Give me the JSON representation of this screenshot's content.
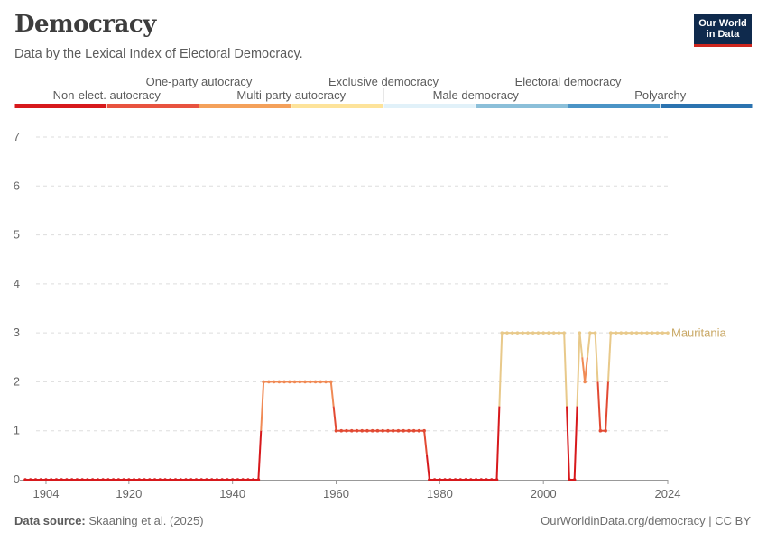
{
  "header": {
    "title": "Democracy",
    "subtitle": "Data by the Lexical Index of Electoral Democracy."
  },
  "logo": {
    "line1": "Our World",
    "line2": "in Data"
  },
  "footer": {
    "source_label": "Data source:",
    "source_text": "Skaaning et al. (2025)",
    "url_text": "OurWorldinData.org/democracy | CC BY"
  },
  "legend": {
    "categories": [
      {
        "label": "Non-elect. autocracy",
        "color": "#d7191c"
      },
      {
        "label": "One-party autocracy",
        "color": "#e8533f"
      },
      {
        "label": "Multi-party autocracy",
        "color": "#f4a15b"
      },
      {
        "label": "Exclusive democracy",
        "color": "#fde39a"
      },
      {
        "label": "Male democracy",
        "color": "#e1f1f9"
      },
      {
        "label": "Electoral democracy",
        "color": "#8bbfd9"
      },
      {
        "label": "Polyarchy",
        "color": "#4b94c6"
      },
      {
        "label": "",
        "color": "#2b73b0"
      }
    ]
  },
  "chart_data": {
    "type": "line",
    "title": "Democracy",
    "subtitle": "Data by the Lexical Index of Electoral Democracy.",
    "xlabel": "",
    "ylabel": "",
    "xlim": [
      1900,
      2024
    ],
    "ylim": [
      0,
      7
    ],
    "x_ticks": [
      1904,
      1920,
      1940,
      1960,
      1980,
      2000,
      2024
    ],
    "y_ticks": [
      0,
      1,
      2,
      3,
      4,
      5,
      6,
      7
    ],
    "series": [
      {
        "name": "Mauritania",
        "label_color": "#c9a865",
        "points": [
          [
            1900,
            0
          ],
          [
            1901,
            0
          ],
          [
            1902,
            0
          ],
          [
            1903,
            0
          ],
          [
            1904,
            0
          ],
          [
            1905,
            0
          ],
          [
            1906,
            0
          ],
          [
            1907,
            0
          ],
          [
            1908,
            0
          ],
          [
            1909,
            0
          ],
          [
            1910,
            0
          ],
          [
            1911,
            0
          ],
          [
            1912,
            0
          ],
          [
            1913,
            0
          ],
          [
            1914,
            0
          ],
          [
            1915,
            0
          ],
          [
            1916,
            0
          ],
          [
            1917,
            0
          ],
          [
            1918,
            0
          ],
          [
            1919,
            0
          ],
          [
            1920,
            0
          ],
          [
            1921,
            0
          ],
          [
            1922,
            0
          ],
          [
            1923,
            0
          ],
          [
            1924,
            0
          ],
          [
            1925,
            0
          ],
          [
            1926,
            0
          ],
          [
            1927,
            0
          ],
          [
            1928,
            0
          ],
          [
            1929,
            0
          ],
          [
            1930,
            0
          ],
          [
            1931,
            0
          ],
          [
            1932,
            0
          ],
          [
            1933,
            0
          ],
          [
            1934,
            0
          ],
          [
            1935,
            0
          ],
          [
            1936,
            0
          ],
          [
            1937,
            0
          ],
          [
            1938,
            0
          ],
          [
            1939,
            0
          ],
          [
            1940,
            0
          ],
          [
            1941,
            0
          ],
          [
            1942,
            0
          ],
          [
            1943,
            0
          ],
          [
            1944,
            0
          ],
          [
            1945,
            0
          ],
          [
            1946,
            2
          ],
          [
            1947,
            2
          ],
          [
            1948,
            2
          ],
          [
            1949,
            2
          ],
          [
            1950,
            2
          ],
          [
            1951,
            2
          ],
          [
            1952,
            2
          ],
          [
            1953,
            2
          ],
          [
            1954,
            2
          ],
          [
            1955,
            2
          ],
          [
            1956,
            2
          ],
          [
            1957,
            2
          ],
          [
            1958,
            2
          ],
          [
            1959,
            2
          ],
          [
            1960,
            1
          ],
          [
            1961,
            1
          ],
          [
            1962,
            1
          ],
          [
            1963,
            1
          ],
          [
            1964,
            1
          ],
          [
            1965,
            1
          ],
          [
            1966,
            1
          ],
          [
            1967,
            1
          ],
          [
            1968,
            1
          ],
          [
            1969,
            1
          ],
          [
            1970,
            1
          ],
          [
            1971,
            1
          ],
          [
            1972,
            1
          ],
          [
            1973,
            1
          ],
          [
            1974,
            1
          ],
          [
            1975,
            1
          ],
          [
            1976,
            1
          ],
          [
            1977,
            1
          ],
          [
            1978,
            0
          ],
          [
            1979,
            0
          ],
          [
            1980,
            0
          ],
          [
            1981,
            0
          ],
          [
            1982,
            0
          ],
          [
            1983,
            0
          ],
          [
            1984,
            0
          ],
          [
            1985,
            0
          ],
          [
            1986,
            0
          ],
          [
            1987,
            0
          ],
          [
            1988,
            0
          ],
          [
            1989,
            0
          ],
          [
            1990,
            0
          ],
          [
            1991,
            0
          ],
          [
            1992,
            3
          ],
          [
            1993,
            3
          ],
          [
            1994,
            3
          ],
          [
            1995,
            3
          ],
          [
            1996,
            3
          ],
          [
            1997,
            3
          ],
          [
            1998,
            3
          ],
          [
            1999,
            3
          ],
          [
            2000,
            3
          ],
          [
            2001,
            3
          ],
          [
            2002,
            3
          ],
          [
            2003,
            3
          ],
          [
            2004,
            3
          ],
          [
            2005,
            0
          ],
          [
            2006,
            0
          ],
          [
            2007,
            3
          ],
          [
            2008,
            2
          ],
          [
            2009,
            3
          ],
          [
            2010,
            3
          ],
          [
            2011,
            1
          ],
          [
            2012,
            1
          ],
          [
            2013,
            3
          ],
          [
            2014,
            3
          ],
          [
            2015,
            3
          ],
          [
            2016,
            3
          ],
          [
            2017,
            3
          ],
          [
            2018,
            3
          ],
          [
            2019,
            3
          ],
          [
            2020,
            3
          ],
          [
            2021,
            3
          ],
          [
            2022,
            3
          ],
          [
            2023,
            3
          ],
          [
            2024,
            3
          ]
        ]
      }
    ]
  }
}
